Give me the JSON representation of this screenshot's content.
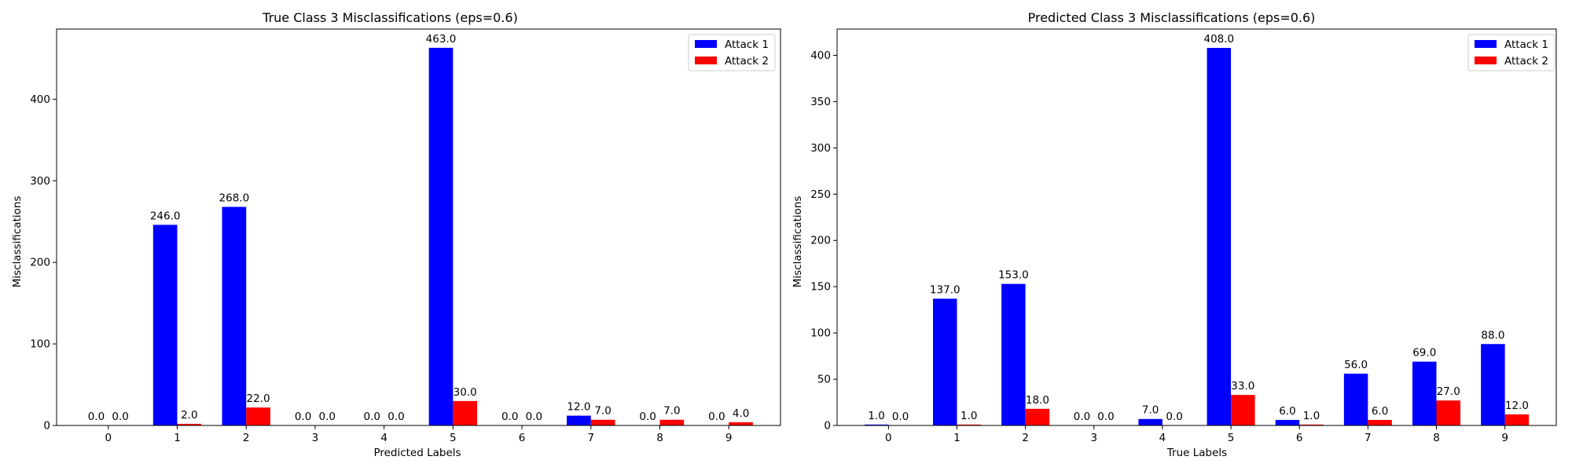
{
  "colors": {
    "attack1": "#0000ff",
    "attack2": "#ff0000",
    "axis": "#000000",
    "background": "#ffffff"
  },
  "chart_data": [
    {
      "type": "bar",
      "title": "True Class 3 Misclassifications (eps=0.6)",
      "xlabel": "Predicted Labels",
      "ylabel": "Misclassifications",
      "categories": [
        "0",
        "1",
        "2",
        "3",
        "4",
        "5",
        "6",
        "7",
        "8",
        "9"
      ],
      "ylim": [
        0,
        486
      ],
      "yticks": [
        0,
        100,
        200,
        300,
        400
      ],
      "grid": false,
      "legend": "top-right",
      "series": [
        {
          "name": "Attack 1",
          "values": [
            0,
            246,
            268,
            0,
            0,
            463,
            0,
            12,
            0,
            0
          ],
          "labels": [
            "0.0",
            "246.0",
            "268.0",
            "0.0",
            "0.0",
            "463.0",
            "0.0",
            "12.0",
            "0.0",
            "0.0"
          ]
        },
        {
          "name": "Attack 2",
          "values": [
            0,
            2,
            22,
            0,
            0,
            30,
            0,
            7,
            7,
            4
          ],
          "labels": [
            "0.0",
            "2.0",
            "22.0",
            "0.0",
            "0.0",
            "30.0",
            "0.0",
            "7.0",
            "7.0",
            "4.0"
          ]
        }
      ]
    },
    {
      "type": "bar",
      "title": "Predicted Class 3 Misclassifications (eps=0.6)",
      "xlabel": "True Labels",
      "ylabel": "Misclassifications",
      "categories": [
        "0",
        "1",
        "2",
        "3",
        "4",
        "5",
        "6",
        "7",
        "8",
        "9"
      ],
      "ylim": [
        0,
        428.4
      ],
      "yticks": [
        0,
        50,
        100,
        150,
        200,
        250,
        300,
        350,
        400
      ],
      "grid": false,
      "legend": "top-right",
      "series": [
        {
          "name": "Attack 1",
          "values": [
            1,
            137,
            153,
            0,
            7,
            408,
            6,
            56,
            69,
            88
          ],
          "labels": [
            "1.0",
            "137.0",
            "153.0",
            "0.0",
            "7.0",
            "408.0",
            "6.0",
            "56.0",
            "69.0",
            "88.0"
          ]
        },
        {
          "name": "Attack 2",
          "values": [
            0,
            1,
            18,
            0,
            0,
            33,
            1,
            6,
            27,
            12
          ],
          "labels": [
            "0.0",
            "1.0",
            "18.0",
            "0.0",
            "0.0",
            "33.0",
            "1.0",
            "6.0",
            "27.0",
            "12.0"
          ]
        }
      ]
    }
  ]
}
